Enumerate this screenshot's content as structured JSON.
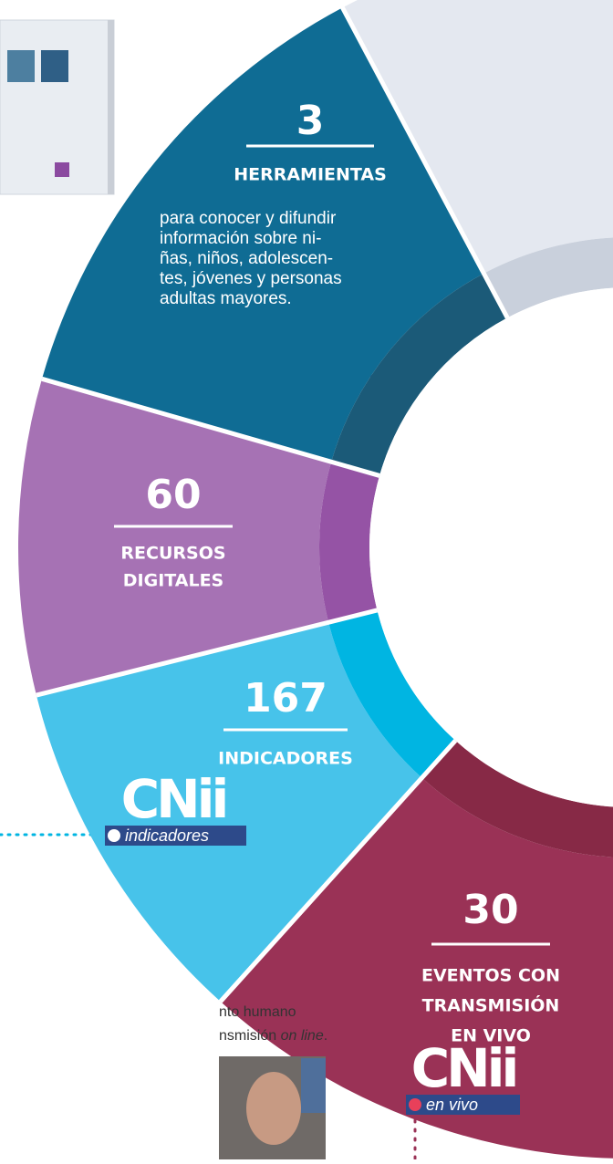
{
  "segments": [
    {
      "number": "3",
      "label": [
        "HERRAMIENTAS"
      ],
      "description": [
        "para conocer y difundir",
        "información sobre ni-",
        "ñas, niños, adolescen-",
        "tes, jóvenes y personas",
        "adultas mayores."
      ]
    },
    {
      "number": "60",
      "label": [
        "RECURSOS",
        "DIGITALES"
      ]
    },
    {
      "number": "167",
      "label": [
        "INDICADORES"
      ]
    },
    {
      "number": "30",
      "label": [
        "EVENTOS CON",
        "TRANSMISIÓN",
        "EN VIVO"
      ]
    }
  ],
  "logos": [
    {
      "brand": "CNii",
      "tag": "indicadores"
    },
    {
      "brand": "CNii",
      "tag": "en vivo"
    }
  ],
  "caption": {
    "line1": "nto humano",
    "line2_start": "nsmisión ",
    "line2_italic": "on line",
    "line2_end": "."
  }
}
